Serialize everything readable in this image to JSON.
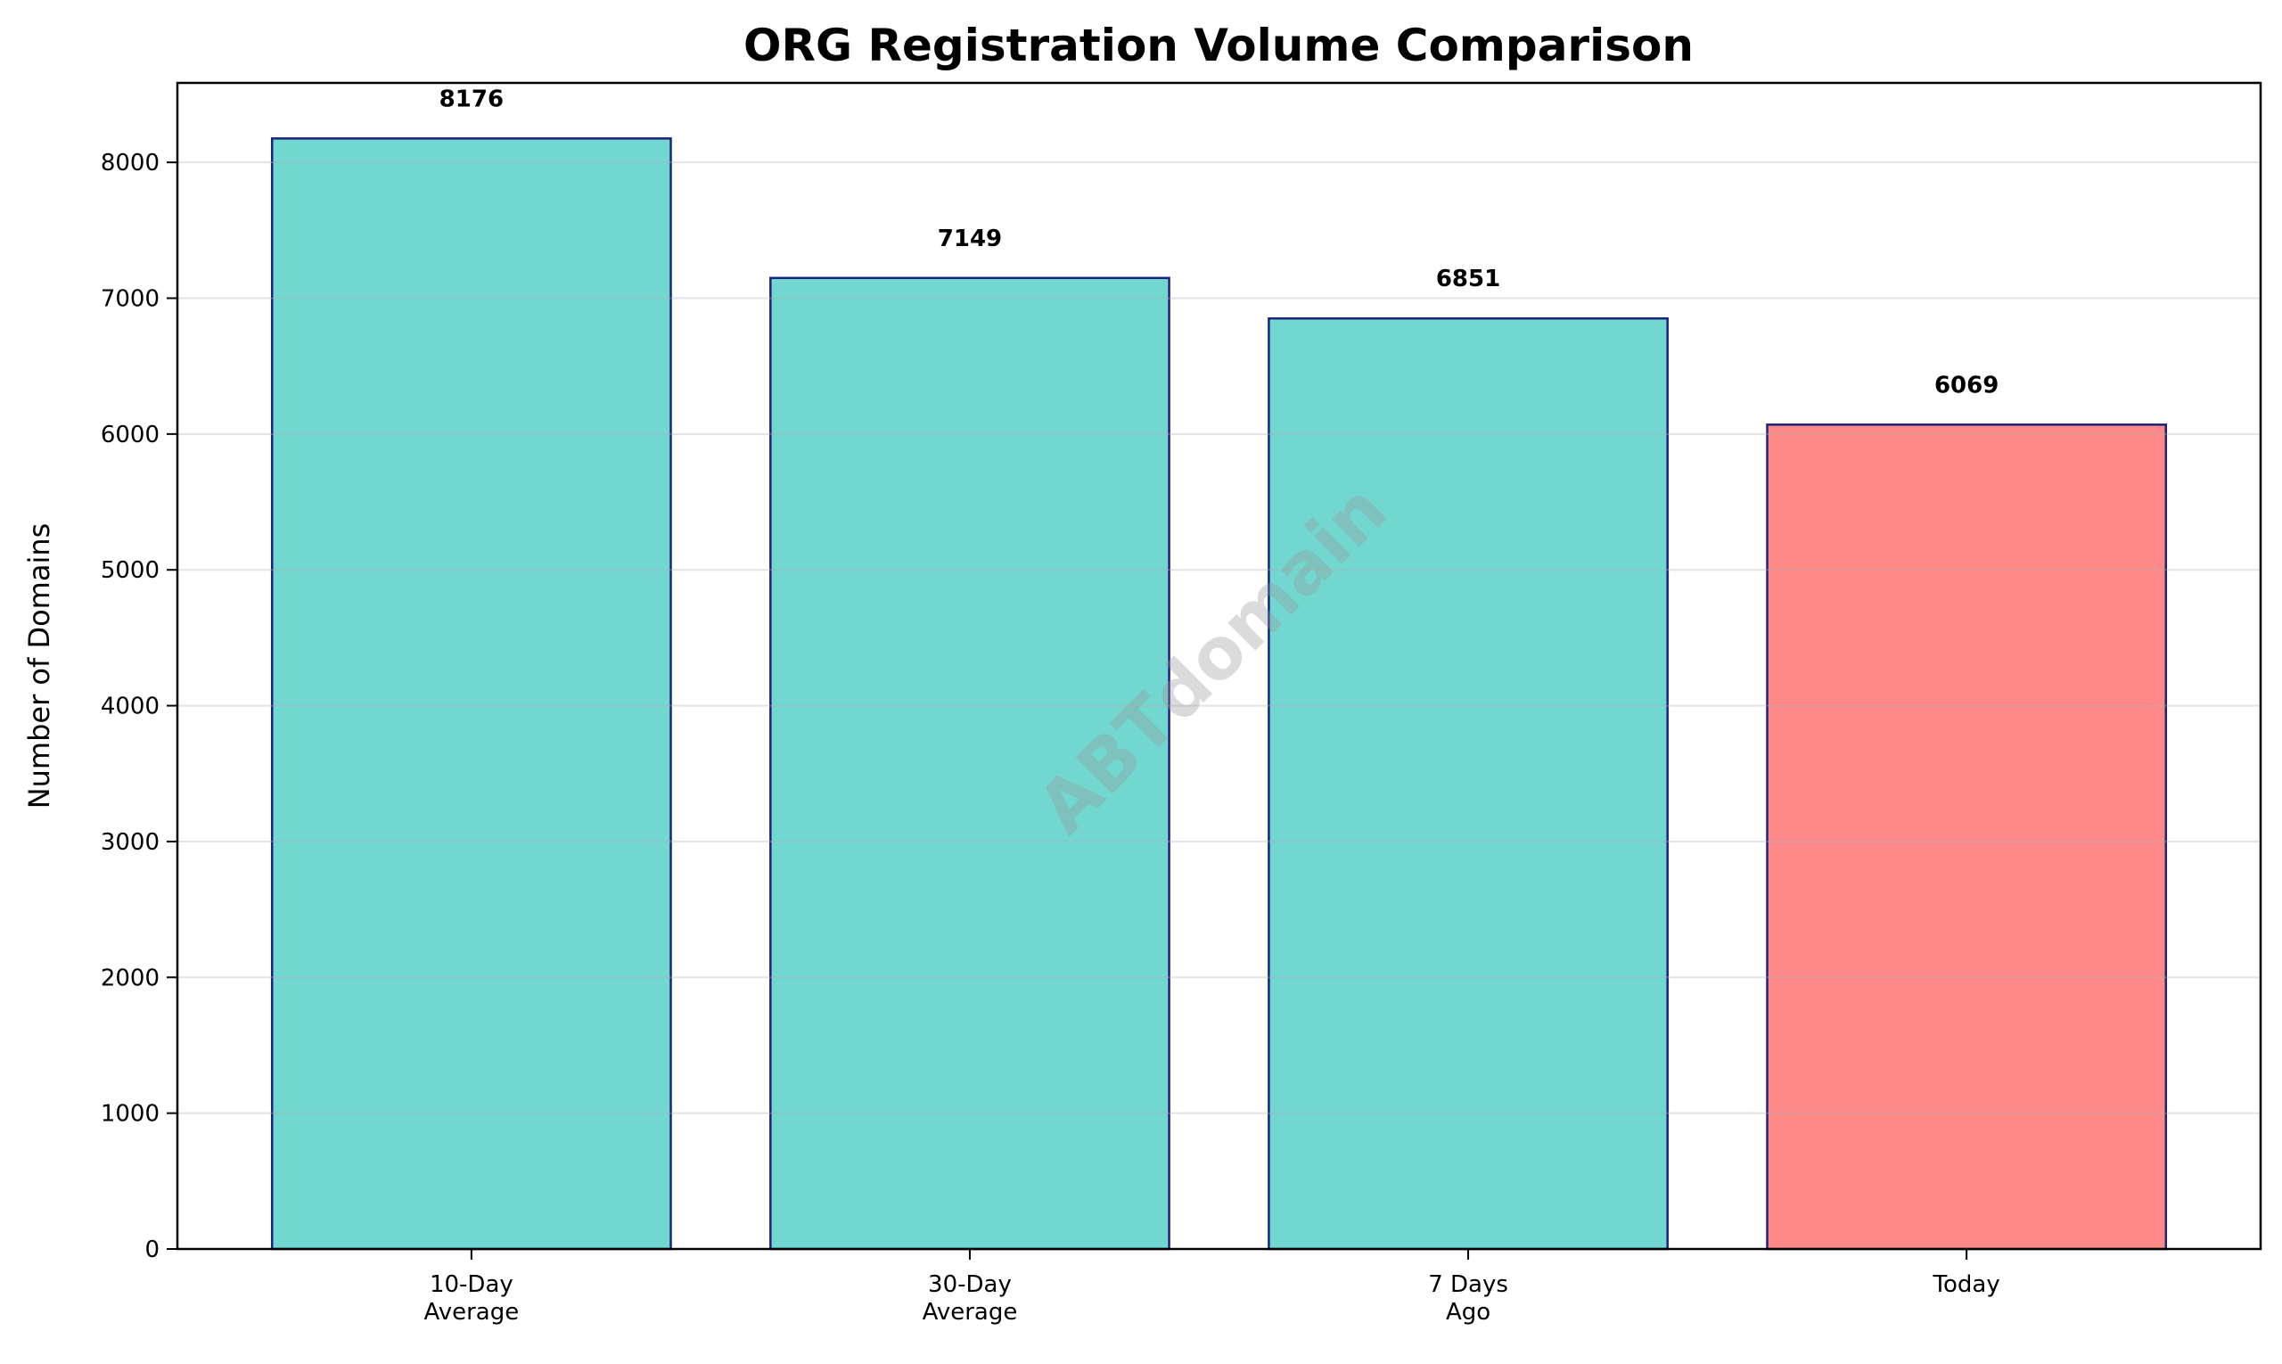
{
  "chart_data": {
    "type": "bar",
    "title": "ORG Registration Volume Comparison",
    "xlabel": "",
    "ylabel": "Number of Domains",
    "categories": [
      "10-Day\nAverage",
      "30-Day\nAverage",
      "7 Days\nAgo",
      "Today"
    ],
    "values": [
      8176,
      7149,
      6851,
      6069
    ],
    "data_labels": [
      "8176",
      "7149",
      "6851",
      "6069"
    ],
    "bar_colors": [
      "#72d7d0",
      "#72d7d0",
      "#72d7d0",
      "#ff8989"
    ],
    "edge_color": "#1a237e",
    "ylim": [
      0,
      8585
    ],
    "yticks": [
      0,
      1000,
      2000,
      3000,
      4000,
      5000,
      6000,
      7000,
      8000
    ],
    "grid": "y",
    "legend": "none",
    "watermark": "ABTdomain"
  }
}
